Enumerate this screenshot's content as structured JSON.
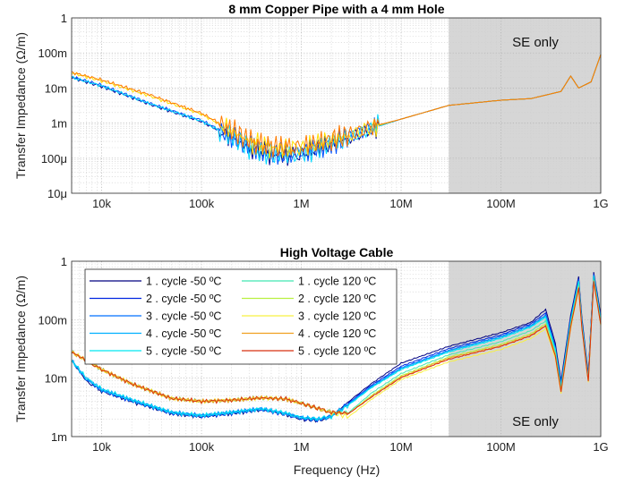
{
  "chart_data": [
    {
      "type": "line",
      "title": "8 mm Copper Pipe with a 4 mm Hole",
      "ylabel": "Transfer Impedance (Ω/m)",
      "xlabel": "",
      "xscale": "log",
      "yscale": "log",
      "xlim": [
        5000,
        1000000000
      ],
      "ylim": [
        1e-05,
        1
      ],
      "xticks": [
        10000,
        100000,
        1000000,
        10000000,
        100000000,
        1000000000
      ],
      "xtick_labels": [
        "10k",
        "100k",
        "1M",
        "10M",
        "100M",
        "1G"
      ],
      "yticks": [
        1e-05,
        0.0001,
        0.001,
        0.01,
        0.1,
        1
      ],
      "ytick_labels": [
        "10μ",
        "100μ",
        "1m",
        "10m",
        "100m",
        "1"
      ],
      "grid": true,
      "shaded_region": {
        "x": [
          30000000,
          1000000000
        ],
        "label": "SE only"
      },
      "series": [
        {
          "color": "#00008f",
          "x": [
            5000,
            10000,
            30000,
            100000,
            200000,
            300000,
            500000,
            700000,
            1000000,
            2000000,
            3000000,
            5000000,
            10000000,
            30000000,
            100000000,
            200000000,
            400000000,
            500000000,
            600000000,
            800000000,
            1000000000
          ],
          "y": [
            0.02,
            0.011,
            0.0035,
            0.0011,
            0.0004,
            0.0002,
            0.00013,
            0.00012,
            0.00013,
            0.00025,
            0.00038,
            0.0007,
            0.0013,
            0.0032,
            0.0045,
            0.005,
            0.008,
            0.022,
            0.01,
            0.015,
            0.09
          ]
        },
        {
          "color": "#0050ff",
          "x": [
            5000,
            10000,
            30000,
            100000,
            200000,
            300000,
            500000,
            700000,
            1000000,
            2000000,
            3000000,
            5000000,
            10000000,
            30000000,
            100000000,
            200000000,
            400000000,
            500000000,
            600000000,
            800000000,
            1000000000
          ],
          "y": [
            0.021,
            0.012,
            0.0037,
            0.0012,
            0.00042,
            0.00021,
            0.00014,
            0.00013,
            0.00014,
            0.00026,
            0.0004,
            0.00072,
            0.0013,
            0.0032,
            0.0045,
            0.005,
            0.008,
            0.022,
            0.01,
            0.015,
            0.09
          ]
        },
        {
          "color": "#00d8ff",
          "x": [
            5000,
            10000,
            30000,
            100000,
            200000,
            300000,
            500000,
            700000,
            1000000,
            2000000,
            3000000,
            5000000,
            10000000,
            30000000,
            100000000,
            200000000,
            400000000,
            500000000,
            600000000,
            800000000,
            1000000000
          ],
          "y": [
            0.02,
            0.0115,
            0.0036,
            0.00115,
            0.0004,
            0.0002,
            0.00012,
            0.00012,
            0.00013,
            0.00025,
            0.00039,
            0.0007,
            0.0013,
            0.0032,
            0.0045,
            0.005,
            0.008,
            0.022,
            0.01,
            0.015,
            0.09
          ]
        },
        {
          "color": "#ffe000",
          "x": [
            5000,
            10000,
            30000,
            100000,
            200000,
            300000,
            500000,
            700000,
            1000000,
            2000000,
            3000000,
            5000000,
            10000000,
            30000000,
            100000000,
            200000000,
            400000000,
            500000000,
            600000000,
            800000000,
            1000000000
          ],
          "y": [
            0.027,
            0.016,
            0.006,
            0.0018,
            0.0006,
            0.0003,
            0.0002,
            0.00019,
            0.0002,
            0.00032,
            0.00045,
            0.00075,
            0.0013,
            0.0032,
            0.0045,
            0.005,
            0.008,
            0.022,
            0.01,
            0.015,
            0.09
          ]
        },
        {
          "color": "#ff7a00",
          "x": [
            5000,
            10000,
            30000,
            100000,
            200000,
            300000,
            500000,
            700000,
            1000000,
            2000000,
            3000000,
            5000000,
            10000000,
            30000000,
            100000000,
            200000000,
            400000000,
            500000000,
            600000000,
            800000000,
            1000000000
          ],
          "y": [
            0.028,
            0.017,
            0.0065,
            0.0019,
            0.00065,
            0.00032,
            0.00021,
            0.0002,
            0.00021,
            0.00034,
            0.00047,
            0.00078,
            0.0013,
            0.0032,
            0.0045,
            0.005,
            0.008,
            0.022,
            0.01,
            0.015,
            0.09
          ]
        }
      ]
    },
    {
      "type": "line",
      "title": "High Voltage Cable",
      "ylabel": "Transfer Impedance (Ω/m)",
      "xlabel": "Frequency (Hz)",
      "xscale": "log",
      "yscale": "log",
      "xlim": [
        5000,
        1000000000
      ],
      "ylim": [
        0.001,
        1
      ],
      "xticks": [
        10000,
        100000,
        1000000,
        10000000,
        100000000,
        1000000000
      ],
      "xtick_labels": [
        "10k",
        "100k",
        "1M",
        "10M",
        "100M",
        "1G"
      ],
      "yticks": [
        0.001,
        0.01,
        0.1,
        1
      ],
      "ytick_labels": [
        "1m",
        "10m",
        "100m",
        "1"
      ],
      "grid": true,
      "legend_placement": "top-left",
      "shaded_region": {
        "x": [
          30000000,
          1000000000
        ],
        "label": "SE only"
      },
      "series": [
        {
          "name": "1 . cycle -50  ºC",
          "color": "#000080",
          "x": [
            5000,
            7000,
            10000,
            20000,
            50000,
            100000,
            200000,
            400000,
            700000,
            1000000,
            1500000,
            2000000,
            3000000,
            5000000,
            10000000,
            30000000,
            100000000,
            200000000,
            280000000,
            350000000,
            400000000,
            500000000,
            600000000,
            650000000,
            750000000,
            850000000,
            1000000000
          ],
          "y": [
            0.02,
            0.009,
            0.006,
            0.004,
            0.0025,
            0.0022,
            0.0025,
            0.0029,
            0.0024,
            0.002,
            0.0019,
            0.0022,
            0.004,
            0.008,
            0.018,
            0.035,
            0.06,
            0.09,
            0.15,
            0.04,
            0.009,
            0.12,
            0.55,
            0.1,
            0.012,
            0.65,
            0.12
          ]
        },
        {
          "name": "2 . cycle -50  ºC",
          "color": "#0026e0",
          "x": [
            5000,
            7000,
            10000,
            20000,
            50000,
            100000,
            200000,
            400000,
            700000,
            1000000,
            1500000,
            2000000,
            3000000,
            5000000,
            10000000,
            30000000,
            100000000,
            200000000,
            280000000,
            350000000,
            400000000,
            500000000,
            600000000,
            650000000,
            750000000,
            850000000,
            1000000000
          ],
          "y": [
            0.02,
            0.0095,
            0.0062,
            0.0041,
            0.0025,
            0.0022,
            0.0025,
            0.0029,
            0.0024,
            0.002,
            0.0019,
            0.0022,
            0.0038,
            0.0075,
            0.016,
            0.032,
            0.055,
            0.085,
            0.13,
            0.035,
            0.008,
            0.11,
            0.5,
            0.09,
            0.011,
            0.6,
            0.11
          ]
        },
        {
          "name": "3 . cycle -50  ºC",
          "color": "#0070ff",
          "x": [
            5000,
            7000,
            10000,
            20000,
            50000,
            100000,
            200000,
            400000,
            700000,
            1000000,
            1500000,
            2000000,
            3000000,
            5000000,
            10000000,
            30000000,
            100000000,
            200000000,
            280000000,
            350000000,
            400000000,
            500000000,
            600000000,
            650000000,
            750000000,
            850000000,
            1000000000
          ],
          "y": [
            0.02,
            0.0098,
            0.0063,
            0.0042,
            0.0026,
            0.0023,
            0.0026,
            0.003,
            0.0025,
            0.0021,
            0.002,
            0.0022,
            0.0037,
            0.0072,
            0.015,
            0.03,
            0.052,
            0.08,
            0.12,
            0.033,
            0.0075,
            0.1,
            0.48,
            0.085,
            0.0105,
            0.58,
            0.105
          ]
        },
        {
          "name": "4 . cycle -50  ºC",
          "color": "#00b0ff",
          "x": [
            5000,
            7000,
            10000,
            20000,
            50000,
            100000,
            200000,
            400000,
            700000,
            1000000,
            1500000,
            2000000,
            3000000,
            5000000,
            10000000,
            30000000,
            100000000,
            200000000,
            280000000,
            350000000,
            400000000,
            500000000,
            600000000,
            650000000,
            750000000,
            850000000,
            1000000000
          ],
          "y": [
            0.02,
            0.01,
            0.0064,
            0.0042,
            0.0026,
            0.0023,
            0.0026,
            0.003,
            0.0025,
            0.0021,
            0.002,
            0.0022,
            0.0036,
            0.007,
            0.0145,
            0.029,
            0.05,
            0.078,
            0.115,
            0.032,
            0.0072,
            0.098,
            0.46,
            0.082,
            0.0102,
            0.56,
            0.1
          ]
        },
        {
          "name": "5 . cycle -50  ºC",
          "color": "#00e8f0",
          "x": [
            5000,
            7000,
            10000,
            20000,
            50000,
            100000,
            200000,
            400000,
            700000,
            1000000,
            1500000,
            2000000,
            3000000,
            5000000,
            10000000,
            30000000,
            100000000,
            200000000,
            280000000,
            350000000,
            400000000,
            500000000,
            600000000,
            650000000,
            750000000,
            850000000,
            1000000000
          ],
          "y": [
            0.02,
            0.01,
            0.0065,
            0.0043,
            0.0026,
            0.0023,
            0.0026,
            0.003,
            0.0025,
            0.0021,
            0.002,
            0.0022,
            0.0035,
            0.0068,
            0.014,
            0.028,
            0.048,
            0.075,
            0.11,
            0.031,
            0.007,
            0.095,
            0.45,
            0.08,
            0.01,
            0.55,
            0.098
          ]
        },
        {
          "name": "1 . cycle 120  ºC",
          "color": "#40e8b0",
          "x": [
            5000,
            7000,
            10000,
            20000,
            50000,
            100000,
            200000,
            400000,
            700000,
            1000000,
            1500000,
            2000000,
            3000000,
            5000000,
            10000000,
            30000000,
            100000000,
            200000000,
            280000000,
            350000000,
            400000000,
            500000000,
            600000000,
            650000000,
            750000000,
            850000000,
            1000000000
          ],
          "y": [
            0.028,
            0.02,
            0.014,
            0.008,
            0.0045,
            0.004,
            0.0042,
            0.0046,
            0.0044,
            0.0037,
            0.003,
            0.0026,
            0.0026,
            0.0055,
            0.012,
            0.025,
            0.042,
            0.065,
            0.095,
            0.028,
            0.0065,
            0.085,
            0.4,
            0.075,
            0.0095,
            0.5,
            0.09
          ]
        },
        {
          "name": "2 . cycle 120  ºC",
          "color": "#b8f040",
          "x": [
            5000,
            7000,
            10000,
            20000,
            50000,
            100000,
            200000,
            400000,
            700000,
            1000000,
            1500000,
            2000000,
            3000000,
            5000000,
            10000000,
            30000000,
            100000000,
            200000000,
            280000000,
            350000000,
            400000000,
            500000000,
            600000000,
            650000000,
            750000000,
            850000000,
            1000000000
          ],
          "y": [
            0.028,
            0.02,
            0.014,
            0.008,
            0.0045,
            0.004,
            0.0042,
            0.0046,
            0.0044,
            0.0037,
            0.003,
            0.0026,
            0.0025,
            0.005,
            0.011,
            0.023,
            0.038,
            0.058,
            0.085,
            0.026,
            0.006,
            0.08,
            0.37,
            0.07,
            0.009,
            0.47,
            0.085
          ]
        },
        {
          "name": "3 . cycle 120  ºC",
          "color": "#f8f040",
          "x": [
            5000,
            7000,
            10000,
            20000,
            50000,
            100000,
            200000,
            400000,
            700000,
            1000000,
            1500000,
            2000000,
            3000000,
            5000000,
            10000000,
            30000000,
            100000000,
            200000000,
            280000000,
            350000000,
            400000000,
            500000000,
            600000000,
            650000000,
            750000000,
            850000000,
            1000000000
          ],
          "y": [
            0.028,
            0.02,
            0.014,
            0.008,
            0.0045,
            0.004,
            0.0042,
            0.0046,
            0.0044,
            0.0037,
            0.003,
            0.0025,
            0.0022,
            0.0043,
            0.0095,
            0.019,
            0.031,
            0.048,
            0.07,
            0.022,
            0.0055,
            0.07,
            0.33,
            0.065,
            0.0085,
            0.43,
            0.08
          ]
        },
        {
          "name": "4 . cycle 120  ºC",
          "color": "#f0a020",
          "x": [
            5000,
            7000,
            10000,
            20000,
            50000,
            100000,
            200000,
            400000,
            700000,
            1000000,
            1500000,
            2000000,
            3000000,
            5000000,
            10000000,
            30000000,
            100000000,
            200000000,
            280000000,
            350000000,
            400000000,
            500000000,
            600000000,
            650000000,
            750000000,
            850000000,
            1000000000
          ],
          "y": [
            0.028,
            0.02,
            0.014,
            0.008,
            0.0045,
            0.004,
            0.0042,
            0.0046,
            0.0044,
            0.0037,
            0.003,
            0.0026,
            0.0025,
            0.0048,
            0.0105,
            0.022,
            0.036,
            0.055,
            0.08,
            0.025,
            0.006,
            0.078,
            0.36,
            0.068,
            0.009,
            0.46,
            0.084
          ]
        },
        {
          "name": "5 . cycle 120  ºC",
          "color": "#d83010",
          "x": [
            5000,
            7000,
            10000,
            20000,
            50000,
            100000,
            200000,
            400000,
            700000,
            1000000,
            1500000,
            2000000,
            3000000,
            5000000,
            10000000,
            30000000,
            100000000,
            200000000,
            280000000,
            350000000,
            400000000,
            500000000,
            600000000,
            650000000,
            750000000,
            850000000,
            1000000000
          ],
          "y": [
            0.028,
            0.02,
            0.014,
            0.008,
            0.0045,
            0.004,
            0.0042,
            0.0046,
            0.0044,
            0.0037,
            0.003,
            0.0026,
            0.0025,
            0.0047,
            0.0102,
            0.021,
            0.035,
            0.053,
            0.078,
            0.024,
            0.0058,
            0.076,
            0.35,
            0.067,
            0.0088,
            0.45,
            0.083
          ]
        }
      ]
    }
  ]
}
